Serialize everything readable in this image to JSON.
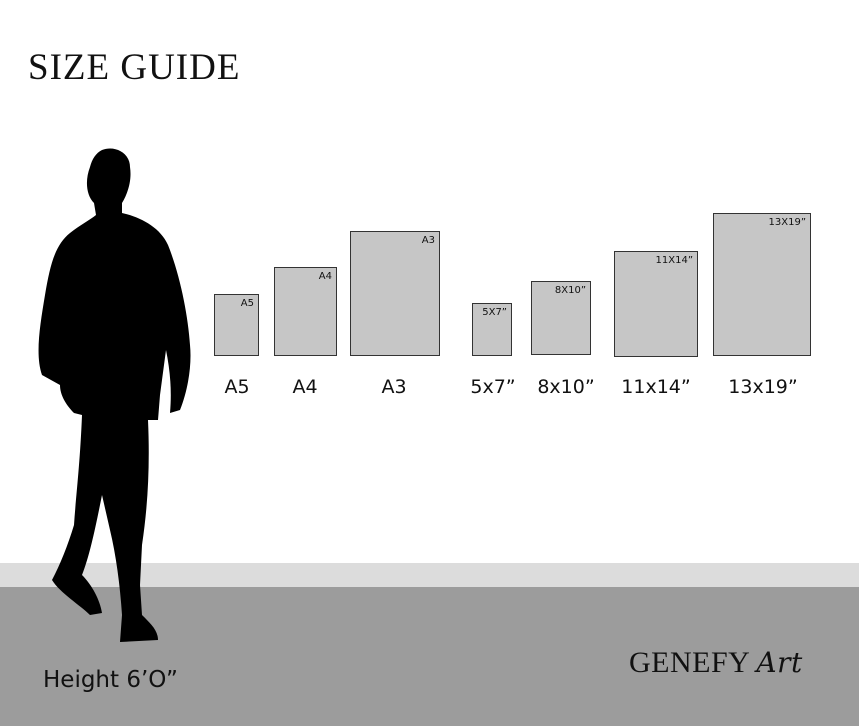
{
  "title": "SIZE GUIDE",
  "person": {
    "height_label": "Height 6’O”",
    "icon": "man-silhouette-icon"
  },
  "sizes": [
    {
      "tag": "A5",
      "label": "A5"
    },
    {
      "tag": "A4",
      "label": "A4"
    },
    {
      "tag": "A3",
      "label": "A3"
    },
    {
      "tag": "5X7”",
      "label": "5x7”"
    },
    {
      "tag": "8X10”",
      "label": "8x10”"
    },
    {
      "tag": "11X14”",
      "label": "11x14”"
    },
    {
      "tag": "13X19”",
      "label": "13x19”"
    }
  ],
  "brand": {
    "name": "GENEFY",
    "script": "Art"
  },
  "colors": {
    "frame_fill": "#c6c6c6",
    "floor": "#9c9c9c",
    "floor_band": "#dcdcdc"
  }
}
